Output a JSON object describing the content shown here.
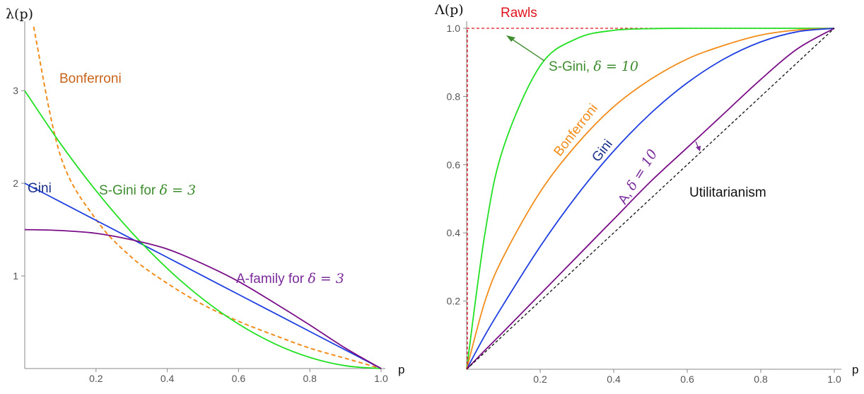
{
  "chart_data": [
    {
      "type": "line",
      "ylabel": "λ(p)",
      "xlabel": "p",
      "xlim": [
        0,
        1.0
      ],
      "ylim": [
        0,
        3.75
      ],
      "x_ticks": [
        "0.2",
        "0.4",
        "0.6",
        "0.8",
        "1.0"
      ],
      "y_ticks": [
        "1",
        "2",
        "3"
      ],
      "x": [
        0.0,
        0.1,
        0.2,
        0.3,
        0.4,
        0.5,
        0.6,
        0.7,
        0.8,
        0.9,
        1.0
      ],
      "series": [
        {
          "name": "Bonferroni",
          "color": "#f28c1a",
          "dashed": true,
          "values": [
            null,
            2.3,
            1.61,
            1.2,
            0.92,
            0.69,
            0.51,
            0.36,
            0.22,
            0.11,
            0.0
          ],
          "start": [
            0.025,
            3.69
          ]
        },
        {
          "name": "Gini",
          "color": "#1f3fe0",
          "values": [
            2.0,
            1.8,
            1.6,
            1.4,
            1.2,
            1.0,
            0.8,
            0.6,
            0.4,
            0.2,
            0.0
          ]
        },
        {
          "name": "S-Gini for",
          "color": "#22e022",
          "values": [
            3.0,
            2.43,
            1.92,
            1.47,
            1.08,
            0.75,
            0.48,
            0.27,
            0.12,
            0.03,
            0.0
          ]
        },
        {
          "name": "A-family for",
          "color": "#7a0f88",
          "values": [
            1.5,
            1.49,
            1.46,
            1.39,
            1.29,
            1.13,
            0.94,
            0.71,
            0.47,
            0.22,
            0.0
          ]
        }
      ],
      "labels": {
        "bonferroni": "Bonferroni",
        "gini": "Gini",
        "sgini_text": "S-Gini for",
        "sgini_math": "δ = 3",
        "afam_text": "A-family for",
        "afam_math": "δ = 3"
      }
    },
    {
      "type": "line",
      "ylabel": "Λ(p)",
      "xlabel": "p",
      "xlim": [
        0,
        1.0
      ],
      "ylim": [
        0,
        1.0
      ],
      "x_ticks": [
        "0.2",
        "0.4",
        "0.6",
        "0.8",
        "1.0"
      ],
      "y_ticks": [
        "0.2",
        "0.4",
        "0.6",
        "0.8",
        "1.0"
      ],
      "x": [
        0.0,
        0.05,
        0.1,
        0.2,
        0.3,
        0.4,
        0.5,
        0.6,
        0.7,
        0.8,
        0.9,
        1.0
      ],
      "series": [
        {
          "name": "Rawls",
          "color": "#e0141e",
          "dashed": true,
          "values": [
            1.0,
            1.0,
            1.0,
            1.0,
            1.0,
            1.0,
            1.0,
            1.0,
            1.0,
            1.0,
            1.0,
            1.0
          ]
        },
        {
          "name": "S-Gini",
          "color": "#22e022",
          "values": [
            0.0,
            0.4,
            0.65,
            0.89,
            0.97,
            0.994,
            0.999,
            1.0,
            1.0,
            1.0,
            1.0,
            1.0
          ]
        },
        {
          "name": "Bonferroni",
          "color": "#f28c1a",
          "values": [
            0.0,
            0.2,
            0.33,
            0.52,
            0.66,
            0.77,
            0.85,
            0.91,
            0.95,
            0.98,
            0.995,
            1.0
          ]
        },
        {
          "name": "Gini",
          "color": "#1f3fe0",
          "values": [
            0.0,
            0.1,
            0.19,
            0.36,
            0.51,
            0.64,
            0.75,
            0.84,
            0.91,
            0.96,
            0.99,
            1.0
          ]
        },
        {
          "name": "A",
          "color": "#7a0f88",
          "values": [
            0.0,
            0.056,
            0.11,
            0.22,
            0.33,
            0.44,
            0.55,
            0.65,
            0.75,
            0.85,
            0.94,
            1.0
          ]
        },
        {
          "name": "Utilitarianism",
          "color": "#111111",
          "dashed": true,
          "values": [
            0.0,
            0.05,
            0.1,
            0.2,
            0.3,
            0.4,
            0.5,
            0.6,
            0.7,
            0.8,
            0.9,
            1.0
          ]
        }
      ],
      "labels": {
        "rawls": "Rawls",
        "sgini_text": "S-Gini,",
        "sgini_math": "δ = 10",
        "bonferroni": "Bonferroni",
        "gini": "Gini",
        "a_text": "A,",
        "a_math": "δ = 10",
        "utilitarianism": "Utilitarianism"
      }
    }
  ]
}
